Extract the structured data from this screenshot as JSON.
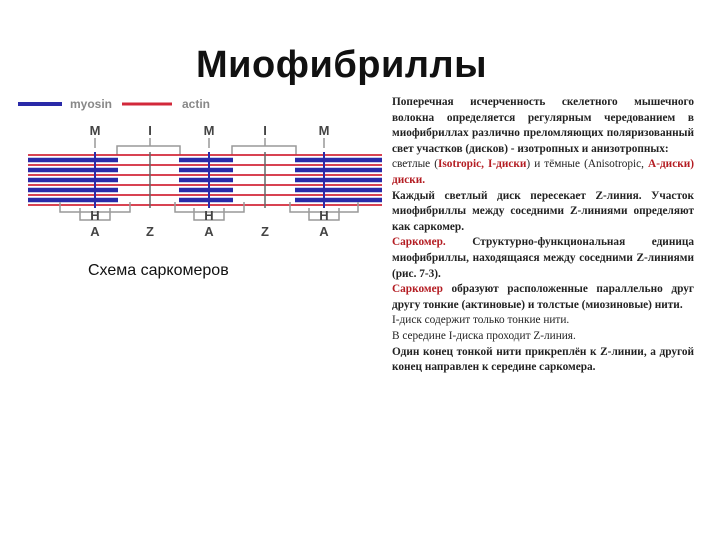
{
  "page": {
    "title": "Миофибриллы",
    "caption": "Схема саркомеров"
  },
  "diagram": {
    "legend": {
      "myosin": "myosin",
      "actin": "actin"
    },
    "colors": {
      "myosin": "#2a2aa8",
      "actin": "#d2283a",
      "lines": "#888888"
    },
    "top_labels": [
      "M",
      "I",
      "M",
      "I",
      "M"
    ],
    "h_labels": [
      "H",
      "H",
      "H"
    ],
    "bottom_labels": [
      "A",
      "Z",
      "A",
      "Z",
      "A"
    ]
  },
  "text": {
    "p1": "Поперечная исчерченность скелетного мышечного волокна определяется регулярным чередованием в миофибриллах различно преломляющих поляризованный свет участков (дисков) - изотропных и анизотропных:",
    "p2a": "светлые (",
    "p2b": "Isotropic, I-диски",
    "p2c": ") и тёмные (Anisotropic,",
    "p2d": "A-диски) диски.",
    "p3": "Каждый светлый диск пересекает Z-линия. Участок миофибриллы между соседними Z-линиями определяют как саркомер.",
    "p4a": "Саркомер.",
    "p4b": " Структурно-функциональная единица миофибриллы, находящаяся между соседними Z-линиями (рис. 7-3).",
    "p5a": "Саркомер",
    "p5b": " образуют расположенные параллельно друг другу тонкие (актиновые) и толстые (миозиновые) нити.",
    "p6": "I-диск содержит только тонкие нити.",
    "p7": "В середине I-диска проходит Z-линия.",
    "p8": "Один конец тонкой нити прикреплён к Z-линии, а другой конец направлен к середине саркомера."
  }
}
